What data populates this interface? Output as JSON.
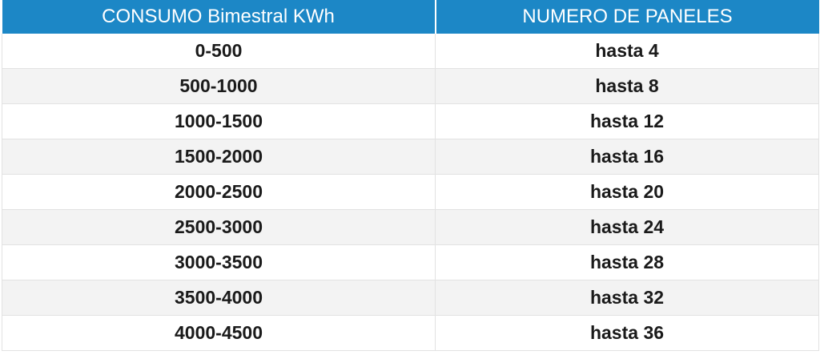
{
  "table": {
    "headers": [
      "CONSUMO Bimestral KWh",
      "NUMERO DE PANELES"
    ],
    "rows": [
      [
        "0-500",
        "hasta 4"
      ],
      [
        "500-1000",
        "hasta 8"
      ],
      [
        "1000-1500",
        "hasta 12"
      ],
      [
        "1500-2000",
        "hasta 16"
      ],
      [
        "2000-2500",
        "hasta 20"
      ],
      [
        "2500-3000",
        "hasta 24"
      ],
      [
        "3000-3500",
        "hasta 28"
      ],
      [
        "3500-4000",
        "hasta 32"
      ],
      [
        "4000-4500",
        "hasta 36"
      ]
    ],
    "colors": {
      "header_bg": "#1c87c6",
      "header_text": "#ffffff",
      "stripe": "#f3f3f3"
    }
  }
}
